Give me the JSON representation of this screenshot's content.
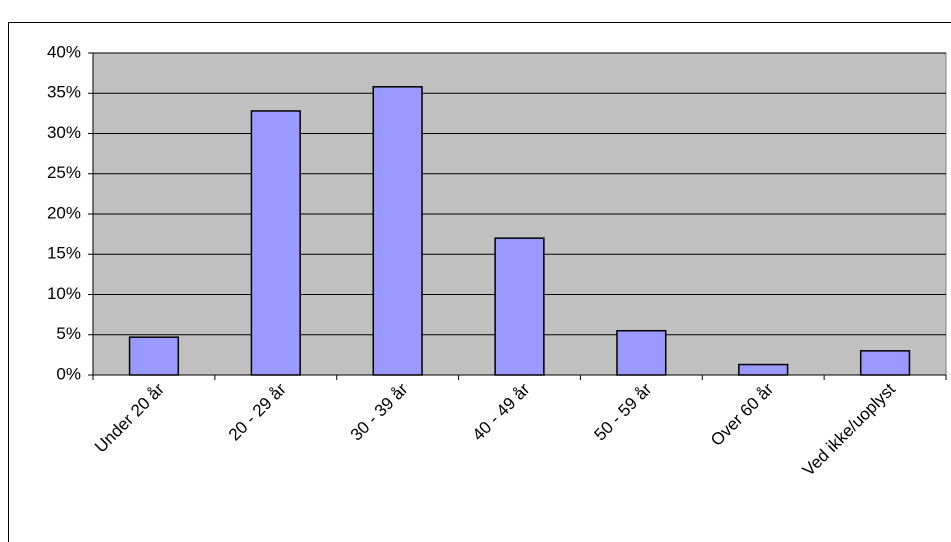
{
  "chart_data": {
    "type": "bar",
    "categories": [
      "Under 20 år",
      "20 - 29 år",
      "30 - 39 år",
      "40 - 49 år",
      "50 - 59 år",
      "Over 60 år",
      "Ved ikke/uoplyst"
    ],
    "values": [
      4.7,
      32.8,
      35.8,
      17.0,
      5.5,
      1.3,
      3.0
    ],
    "color": "#9999ff",
    "ylim": [
      0,
      40
    ],
    "yticks": [
      {
        "value": 0,
        "label": "0%"
      },
      {
        "value": 5,
        "label": "5%"
      },
      {
        "value": 10,
        "label": "10%"
      },
      {
        "value": 15,
        "label": "15%"
      },
      {
        "value": 20,
        "label": "20%"
      },
      {
        "value": 25,
        "label": "25%"
      },
      {
        "value": 30,
        "label": "30%"
      },
      {
        "value": 35,
        "label": "35%"
      },
      {
        "value": 40,
        "label": "40%"
      }
    ],
    "grid": true
  }
}
